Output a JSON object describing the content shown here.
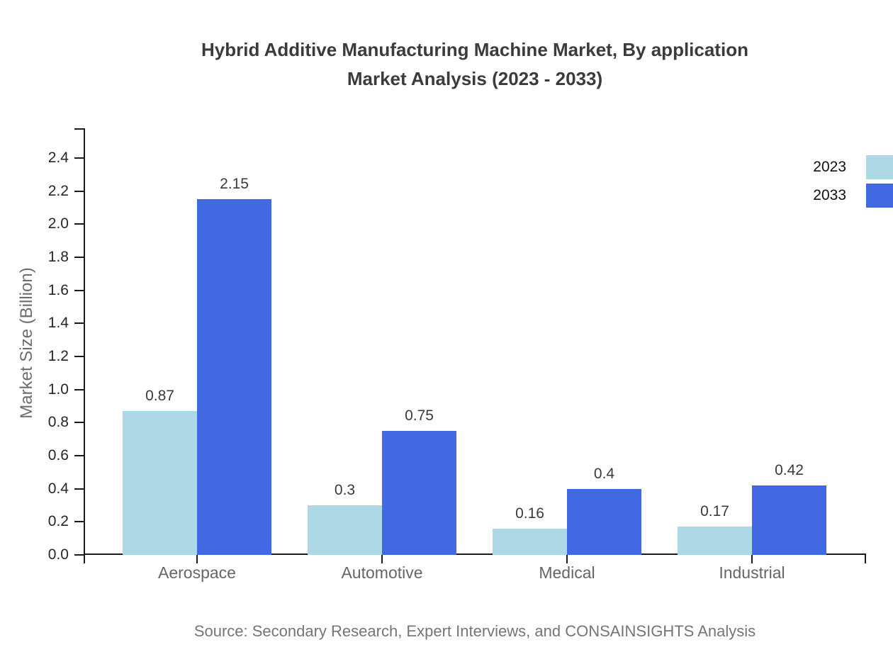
{
  "header": {
    "title_line1": "Hybrid Additive Manufacturing Machine Market, By application",
    "title_line2": "Market Analysis (2023 - 2033)"
  },
  "legend": {
    "position": "top-right",
    "items": [
      {
        "label": "2023",
        "color": "#ADD8E6"
      },
      {
        "label": "2033",
        "color": "#4169E1"
      }
    ]
  },
  "source_note": "Source: Secondary Research, Expert Interviews, and CONSAINSIGHTS Analysis",
  "chart_data": {
    "type": "bar",
    "title": "Hybrid Additive Manufacturing Machine Market, By application Market Analysis (2023 - 2033)",
    "categories": [
      "Aerospace",
      "Automotive",
      "Medical",
      "Industrial"
    ],
    "series": [
      {
        "name": "2023",
        "color": "#ADD8E6",
        "values": [
          0.87,
          0.3,
          0.16,
          0.17
        ]
      },
      {
        "name": "2033",
        "color": "#4169E1",
        "values": [
          2.15,
          0.75,
          0.4,
          0.42
        ]
      }
    ],
    "xlabel": "",
    "ylabel": "Market Size (Billion)",
    "ylim": [
      0,
      2.58
    ],
    "ytick_step": 0.2,
    "ytick_max": 2.4,
    "grid": false,
    "bar_value_labels": true,
    "axis_color": "#1a1a1a"
  }
}
